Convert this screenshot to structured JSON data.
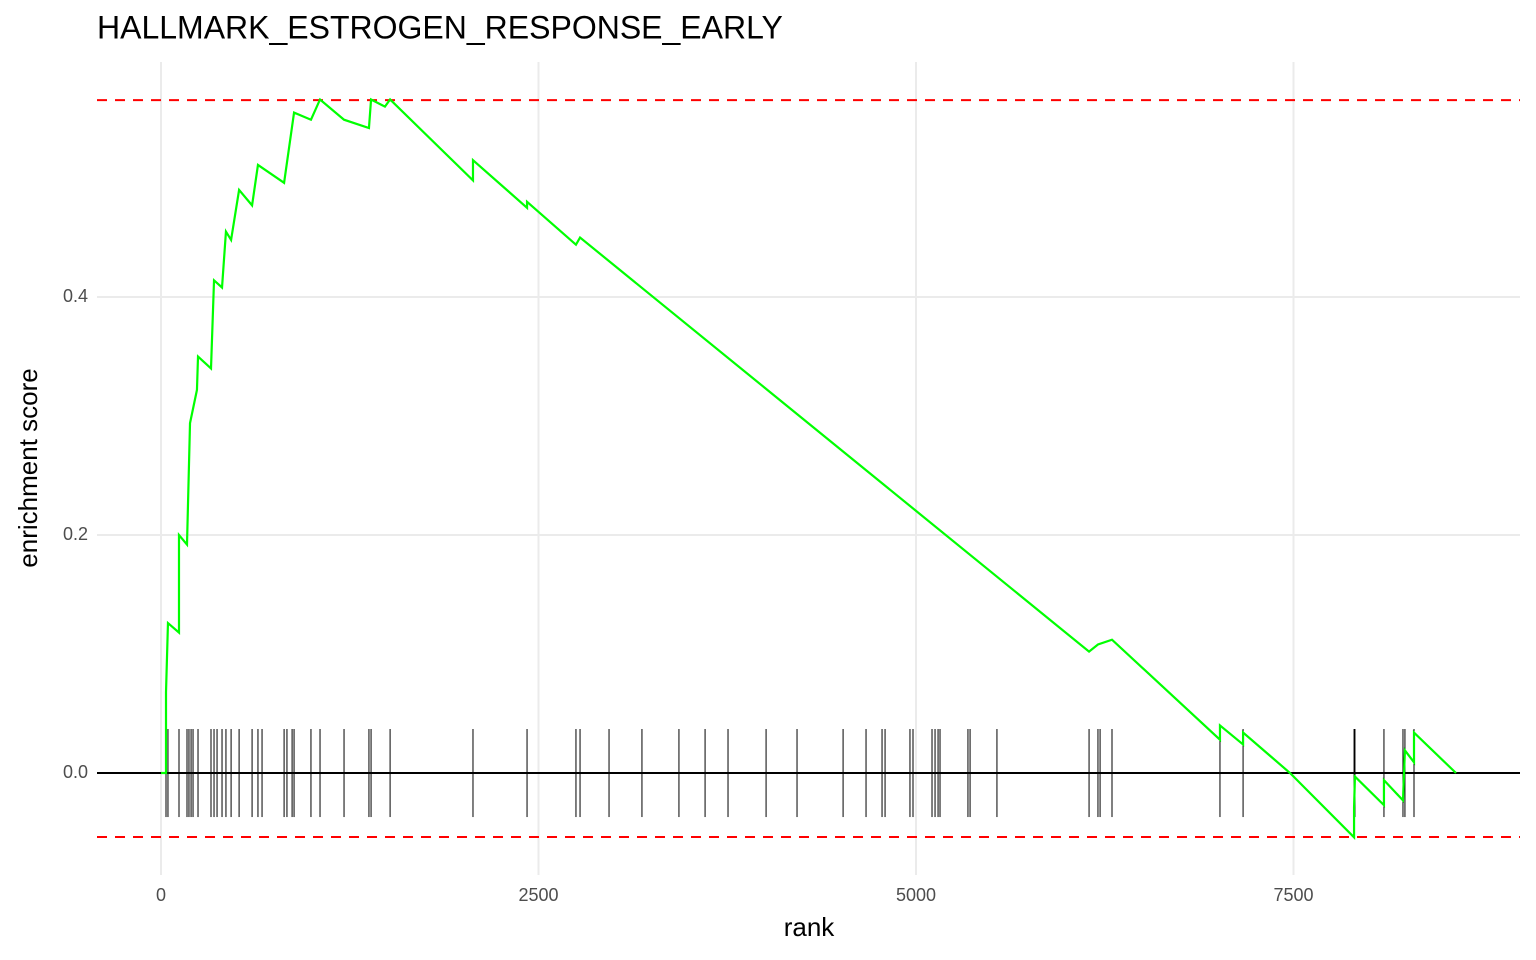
{
  "chart_data": {
    "type": "line",
    "title": "HALLMARK_ESTROGEN_RESPONSE_EARLY",
    "x_label": "rank",
    "y_label": "enrichment score",
    "xlim": [
      -424,
      9000
    ],
    "ylim": [
      -0.0857,
      0.5975
    ],
    "xticks": [
      0,
      2500,
      5000,
      7500
    ],
    "yticks": [
      {
        "value": 0,
        "label": "0.0"
      },
      {
        "value": 0.2,
        "label": "0.2"
      },
      {
        "value": 0.4,
        "label": "0.4"
      }
    ],
    "grid": true,
    "baseline": 0,
    "dashed_hlines": [
      0.5655,
      -0.0538
    ],
    "dashed_color": "#ff0000",
    "hits_color": "#000000",
    "series": [
      {
        "color": "#00ff00",
        "x": [
          0,
          33,
          33,
          46,
          119,
          119,
          172,
          192,
          238,
          245,
          331,
          351,
          404,
          430,
          464,
          517,
          603,
          642,
          815,
          881,
          993,
          1053,
          1212,
          1377,
          1391,
          1483,
          1517,
          2066,
          2066,
          2424,
          2424,
          2748,
          2775,
          6146,
          6205,
          6298,
          7013,
          7013,
          7166,
          7166,
          7477,
          7901,
          7901,
          7907,
          8099,
          8099,
          8225,
          8238,
          8298,
          8298,
          8576
        ],
        "values": [
          0,
          0,
          0.068,
          0.126,
          0.118,
          0.2,
          0.192,
          0.294,
          0.322,
          0.35,
          0.34,
          0.414,
          0.408,
          0.455,
          0.448,
          0.49,
          0.477,
          0.511,
          0.496,
          0.555,
          0.549,
          0.566,
          0.549,
          0.542,
          0.566,
          0.56,
          0.566,
          0.498,
          0.515,
          0.475,
          0.48,
          0.444,
          0.45,
          0.102,
          0.108,
          0.112,
          0.028,
          0.04,
          0.024,
          0.034,
          0,
          -0.054,
          -0.029,
          -0.003,
          -0.027,
          -0.006,
          -0.023,
          0.019,
          0.009,
          0.034,
          0
        ]
      }
    ],
    "hits": [
      33,
      46,
      119,
      172,
      185,
      199,
      212,
      245,
      331,
      351,
      371,
      404,
      430,
      464,
      517,
      603,
      642,
      669,
      815,
      834,
      868,
      881,
      993,
      1053,
      1212,
      1377,
      1391,
      1517,
      2066,
      2424,
      2748,
      2775,
      2967,
      3185,
      3430,
      3603,
      3755,
      4007,
      4212,
      4517,
      4669,
      4775,
      4795,
      4960,
      4980,
      5106,
      5126,
      5146,
      5159,
      5344,
      5358,
      5536,
      6146,
      6205,
      6219,
      6298,
      7013,
      7166,
      7901,
      7907,
      8099,
      8225,
      8238,
      8298
    ]
  }
}
